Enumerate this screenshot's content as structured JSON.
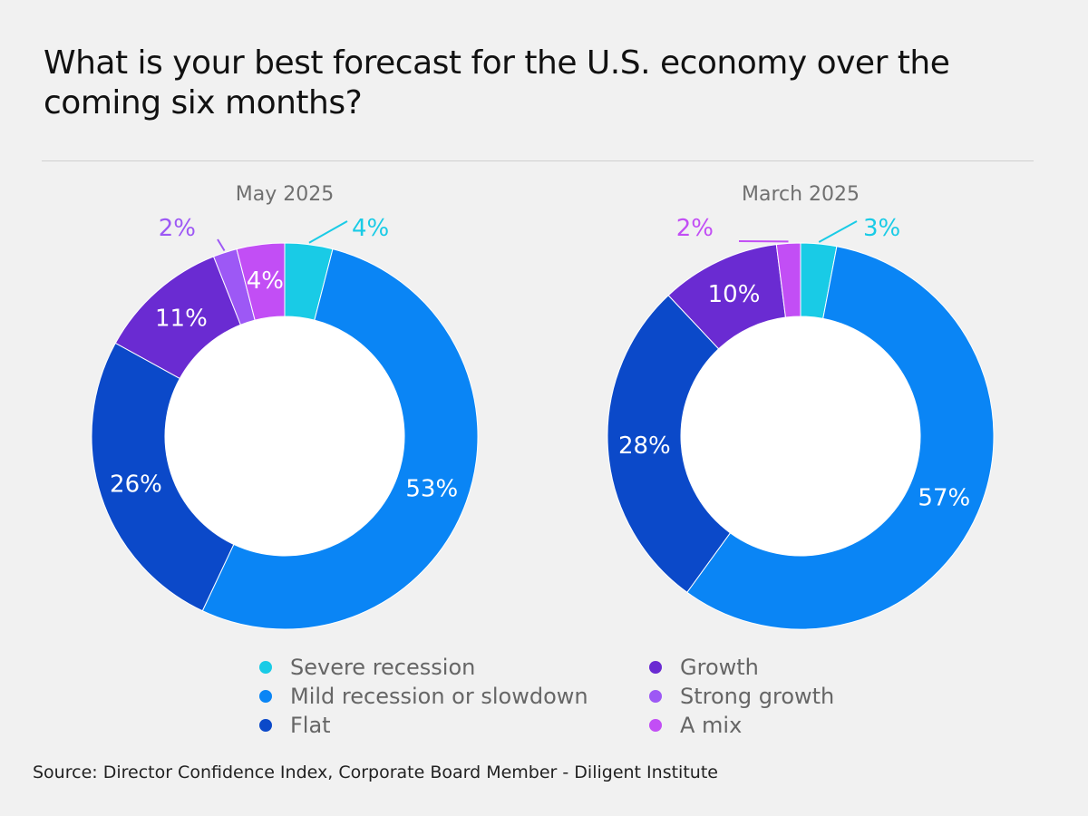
{
  "title": "What is your best forecast for the U.S. economy over the coming six months?",
  "source": "Source: Director Confidence Index, Corporate Board Member - Diligent Institute",
  "colors": {
    "severe": "#19cbe6",
    "mild": "#0a85f5",
    "flat": "#0b49c9",
    "growth": "#6a2bd2",
    "strong": "#9d58f5",
    "mix": "#c24ef5"
  },
  "chart_data": [
    {
      "type": "pie",
      "title": "May 2025",
      "slices": [
        {
          "label": "Severe recession",
          "value": 4,
          "text": "4%",
          "color": "#19cbe6"
        },
        {
          "label": "Mild recession or slowdown",
          "value": 53,
          "text": "53%",
          "color": "#0a85f5"
        },
        {
          "label": "Flat",
          "value": 26,
          "text": "26%",
          "color": "#0b49c9"
        },
        {
          "label": "Growth",
          "value": 11,
          "text": "11%",
          "color": "#6a2bd2"
        },
        {
          "label": "Strong growth",
          "value": 2,
          "text": "2%",
          "color": "#9d58f5"
        },
        {
          "label": "A mix",
          "value": 4,
          "text": "4%",
          "color": "#c24ef5"
        }
      ]
    },
    {
      "type": "pie",
      "title": "March 2025",
      "slices": [
        {
          "label": "Severe recession",
          "value": 3,
          "text": "3%",
          "color": "#19cbe6"
        },
        {
          "label": "Mild recession or slowdown",
          "value": 57,
          "text": "57%",
          "color": "#0a85f5"
        },
        {
          "label": "Flat",
          "value": 28,
          "text": "28%",
          "color": "#0b49c9"
        },
        {
          "label": "Growth",
          "value": 10,
          "text": "10%",
          "color": "#6a2bd2"
        },
        {
          "label": "A mix",
          "value": 2,
          "text": "2%",
          "color": "#c24ef5"
        }
      ]
    }
  ],
  "legend": [
    {
      "label": "Severe recession",
      "color": "#19cbe6"
    },
    {
      "label": "Mild recession or slowdown",
      "color": "#0a85f5"
    },
    {
      "label": "Flat",
      "color": "#0b49c9"
    },
    {
      "label": "Growth",
      "color": "#6a2bd2"
    },
    {
      "label": "Strong growth",
      "color": "#9d58f5"
    },
    {
      "label": "A mix",
      "color": "#c24ef5"
    }
  ]
}
